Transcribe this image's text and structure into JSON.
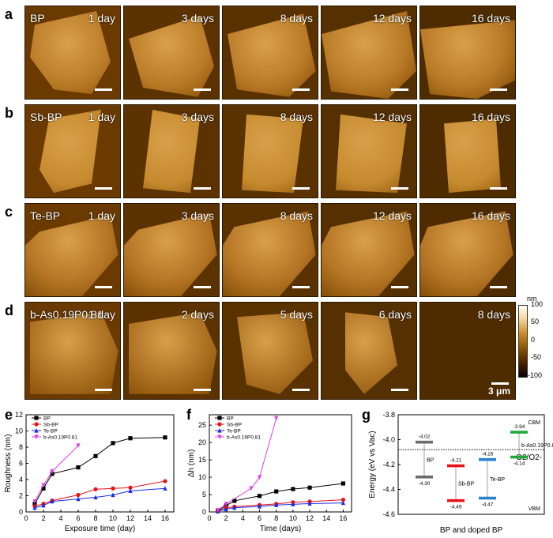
{
  "panels": {
    "a": {
      "letter": "a",
      "sample": "BP",
      "days": [
        "1 day",
        "3 days",
        "8 days",
        "12 days",
        "16 days"
      ]
    },
    "b": {
      "letter": "b",
      "sample": "Sb-BP",
      "days": [
        "1 day",
        "3 days",
        "8 days",
        "12 days",
        "16 days"
      ]
    },
    "c": {
      "letter": "c",
      "sample": "Te-BP",
      "days": [
        "1 day",
        "3 days",
        "8 days",
        "12 days",
        "16 days"
      ]
    },
    "d": {
      "letter": "d",
      "sample": "b-As0.19P0.81",
      "days": [
        "1 day",
        "2 days",
        "5 days",
        "6 days",
        "8 days"
      ],
      "scale": "3 μm"
    },
    "e": {
      "letter": "e"
    },
    "f": {
      "letter": "f"
    },
    "g": {
      "letter": "g"
    }
  },
  "colorbar": {
    "unit": "nm",
    "ticks": [
      "100",
      "50",
      "0",
      "-50",
      "-100"
    ]
  },
  "colors": {
    "bp": "#000000",
    "sb": "#e8121a",
    "te": "#1a2ee0",
    "as": "#e13ce6",
    "g_bp": "#6b6b6b",
    "g_sb": "#e8121a",
    "g_te": "#2a7fd0",
    "g_as": "#22a83a"
  },
  "chart_data": [
    {
      "type": "line",
      "xlabel": "Exposure time (day)",
      "ylabel": "Roughness (nm)",
      "xlim": [
        0,
        17
      ],
      "ylim": [
        0,
        12
      ],
      "xticks": [
        0,
        2,
        4,
        6,
        8,
        10,
        12,
        14,
        16
      ],
      "yticks": [
        0,
        2,
        4,
        6,
        8,
        10,
        12
      ],
      "legend": "top-left",
      "series": [
        {
          "name": "BP",
          "x": [
            1,
            2,
            3,
            6,
            8,
            10,
            12,
            16
          ],
          "y": [
            1.0,
            2.9,
            4.7,
            5.5,
            6.9,
            8.5,
            9.1,
            9.2
          ]
        },
        {
          "name": "Sb-BP",
          "x": [
            1,
            2,
            3,
            6,
            8,
            10,
            12,
            16
          ],
          "y": [
            0.7,
            1.0,
            1.4,
            2.1,
            2.8,
            2.9,
            3.0,
            3.8
          ]
        },
        {
          "name": "Te-BP",
          "x": [
            1,
            2,
            3,
            6,
            8,
            10,
            12,
            16
          ],
          "y": [
            0.5,
            0.8,
            1.3,
            1.6,
            1.8,
            2.1,
            2.6,
            2.9
          ]
        },
        {
          "name": "b-As0.19P0.81",
          "x": [
            1,
            2,
            3,
            6
          ],
          "y": [
            1.3,
            3.3,
            5.0,
            8.2
          ]
        }
      ]
    },
    {
      "type": "line",
      "xlabel": "Time (days)",
      "ylabel": "Δh (nm)",
      "xlim": [
        0,
        17
      ],
      "ylim": [
        0,
        28
      ],
      "xticks": [
        0,
        2,
        4,
        6,
        8,
        10,
        12,
        14,
        16
      ],
      "yticks": [
        0,
        5,
        10,
        15,
        20,
        25
      ],
      "legend": "top-left",
      "series": [
        {
          "name": "BP",
          "x": [
            1,
            2,
            3,
            6,
            8,
            10,
            12,
            16
          ],
          "y": [
            0.3,
            1.8,
            3.2,
            4.6,
            5.9,
            6.6,
            7.0,
            8.2
          ]
        },
        {
          "name": "Sb-BP",
          "x": [
            1,
            2,
            3,
            6,
            8,
            10,
            12,
            16
          ],
          "y": [
            0.1,
            1.2,
            1.5,
            2.0,
            2.3,
            2.8,
            3.0,
            3.5
          ]
        },
        {
          "name": "Te-BP",
          "x": [
            1,
            2,
            3,
            6,
            8,
            10,
            12,
            16
          ],
          "y": [
            0.2,
            0.8,
            1.2,
            1.6,
            2.0,
            2.2,
            2.4,
            2.6
          ]
        },
        {
          "name": "b-As0.19P0.81",
          "x": [
            1,
            2,
            5,
            6,
            8
          ],
          "y": [
            0.5,
            2.3,
            6.8,
            10.0,
            27.0
          ]
        }
      ]
    },
    {
      "type": "bar",
      "xlabel": "BP and doped BP",
      "ylabel": "Energy (eV vs Vac)",
      "ylim": [
        -4.6,
        -3.8
      ],
      "yticks": [
        -4.6,
        -4.4,
        -4.2,
        -4.0,
        -3.8
      ],
      "reference": {
        "label": "O2/O2-",
        "value": -4.08
      },
      "band_labels": {
        "top": "CBM",
        "bottom": "VBM"
      },
      "categories": [
        "BP",
        "Sb-BP",
        "Te-BP",
        "b-As0.19P0.81"
      ],
      "series": [
        {
          "name": "CBM",
          "values": [
            -4.02,
            -4.21,
            -4.16,
            -3.94
          ],
          "labels": [
            "-4.02",
            "-4.21",
            "-4.16",
            "-3.94"
          ]
        },
        {
          "name": "VBM",
          "values": [
            -4.3,
            -4.49,
            -4.47,
            -4.14
          ],
          "labels": [
            "-4.30",
            "-4.49",
            "-4.47",
            "-4.14"
          ]
        }
      ]
    }
  ]
}
